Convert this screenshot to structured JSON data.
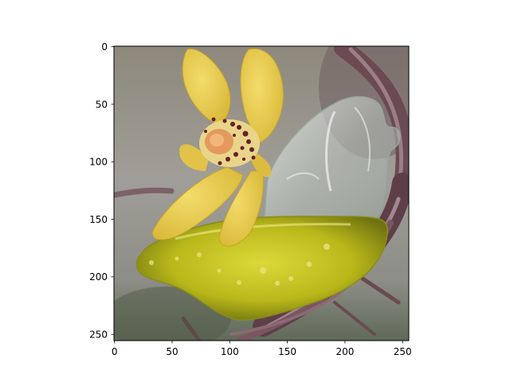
{
  "figure": {
    "subject": "Yellow orchid resting on a yellow-oil-filled glass bird on a twig wreath",
    "colors": {
      "background_top": "#8e8a80",
      "background_mid": "#9a9a94",
      "background_bottom": "#6f7a66",
      "petal": "#e9cd4d",
      "petal_shadow": "#c9a42a",
      "lip": "#e08a4a",
      "speckle": "#6b1e24",
      "oil": "#c2c21a",
      "oil_dark": "#7a7d12",
      "glass": "#c9d2cc",
      "wreath": "#6b4a52",
      "wreath_light": "#9c7e86"
    }
  },
  "chart_data": {
    "type": "image",
    "title": "",
    "xlabel": "",
    "ylabel": "",
    "xlim": [
      0,
      256
    ],
    "ylim": [
      256,
      0
    ],
    "x_ticks": [
      "0",
      "50",
      "100",
      "150",
      "200",
      "250"
    ],
    "y_ticks": [
      "0",
      "50",
      "100",
      "150",
      "200",
      "250"
    ],
    "grid": false
  }
}
